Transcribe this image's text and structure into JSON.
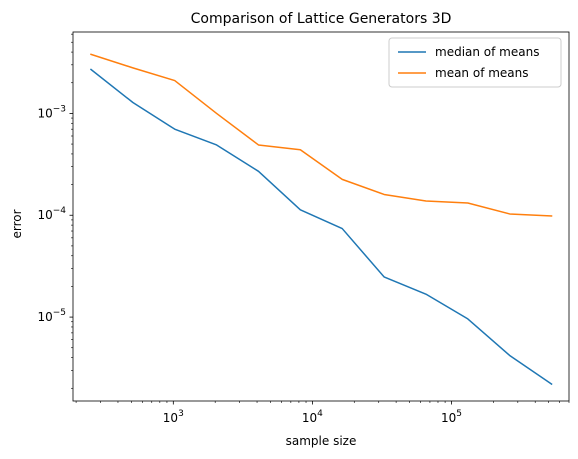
{
  "chart_data": {
    "type": "line",
    "title": "Comparison of Lattice Generators 3D",
    "xlabel": "sample size",
    "ylabel": "error",
    "xscale": "log",
    "yscale": "log",
    "xlim": [
      190,
      700000
    ],
    "ylim": [
      1.5e-06,
      0.0063
    ],
    "x_major_ticks": [
      {
        "value": 1000,
        "base": "10",
        "exp": "3"
      },
      {
        "value": 10000,
        "base": "10",
        "exp": "4"
      },
      {
        "value": 100000,
        "base": "10",
        "exp": "5"
      }
    ],
    "y_major_ticks": [
      {
        "value": 0.001,
        "base": "10",
        "exp": "−3"
      },
      {
        "value": 0.0001,
        "base": "10",
        "exp": "−4"
      },
      {
        "value": 1e-05,
        "base": "10",
        "exp": "−5"
      }
    ],
    "grid": false,
    "legend_position": "top-right",
    "x": [
      256,
      512,
      1024,
      2048,
      4096,
      8192,
      16384,
      32768,
      65536,
      131072,
      262144,
      524288
    ],
    "series": [
      {
        "name": "median of means",
        "color": "#1f77b4",
        "values": [
          0.0027,
          0.00128,
          0.0007,
          0.00049,
          0.00027,
          0.000113,
          7.4e-05,
          2.48e-05,
          1.68e-05,
          9.6e-06,
          4.2e-06,
          2.2e-06
        ]
      },
      {
        "name": "mean of means",
        "color": "#ff7f0e",
        "values": [
          0.0038,
          0.0028,
          0.0021,
          0.001,
          0.00049,
          0.00044,
          0.000225,
          0.00016,
          0.000138,
          0.000132,
          0.000103,
          9.85e-05
        ]
      }
    ]
  }
}
